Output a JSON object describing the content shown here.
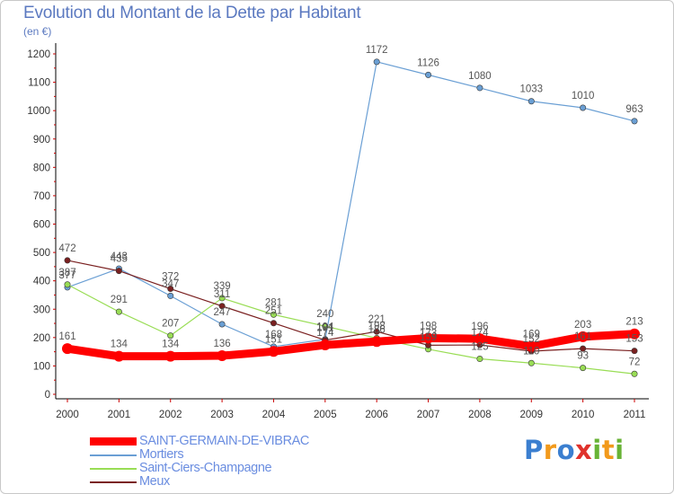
{
  "chart_data": {
    "type": "line",
    "title": "Evolution du Montant de la Dette par Habitant",
    "subtitle": "(en €)",
    "x": [
      "2000",
      "2001",
      "2002",
      "2003",
      "2004",
      "2005",
      "2006",
      "2007",
      "2008",
      "2009",
      "2010",
      "2011"
    ],
    "ylim": [
      0,
      1200
    ],
    "yticks": [
      0,
      100,
      200,
      300,
      400,
      500,
      600,
      700,
      800,
      900,
      1000,
      1100,
      1200
    ],
    "grid": false,
    "legend_position": "bottom-left",
    "series": [
      {
        "name": "SAINT-GERMAIN-DE-VIBRAC",
        "color": "#ff0000",
        "emphasis": true,
        "values": [
          161,
          134,
          134,
          136,
          151,
          174,
          186,
          198,
          196,
          169,
          203,
          213
        ],
        "labels": [
          "161",
          "134",
          "134",
          "136",
          "151",
          "174",
          "186",
          "198",
          "196",
          "169",
          "203",
          "213"
        ]
      },
      {
        "name": "Mortiers",
        "color": "#6a9fd4",
        "emphasis": false,
        "values": [
          377,
          443,
          347,
          247,
          168,
          194,
          1172,
          1126,
          1080,
          1033,
          1010,
          963
        ],
        "labels": [
          "377",
          "443",
          "347",
          "247",
          "168",
          "194",
          "1172",
          "1126",
          "1080",
          "1033",
          "1010",
          "963"
        ]
      },
      {
        "name": "Saint-Ciers-Champagne",
        "color": "#99dd55",
        "emphasis": false,
        "values": [
          387,
          291,
          207,
          339,
          281,
          240,
          198,
          159,
          125,
          110,
          93,
          72
        ],
        "labels": [
          "387",
          "291",
          "207",
          "339",
          "281",
          "240",
          "198",
          "159",
          "125",
          "110",
          "93",
          "72"
        ]
      },
      {
        "name": "Meux",
        "color": "#7a2020",
        "emphasis": false,
        "values": [
          472,
          435,
          372,
          311,
          251,
          191,
          221,
          173,
          174,
          152,
          161,
          153
        ],
        "labels": [
          "472",
          "435",
          "372",
          "311",
          "251",
          "191",
          "221",
          "173",
          "174",
          "152",
          "161",
          "153"
        ]
      }
    ]
  },
  "brand": {
    "logo_text": "Proxiti",
    "letters": [
      "P",
      "r",
      "o",
      "x",
      "i",
      "t",
      "i"
    ],
    "letter_colors": [
      "#3b7fd0",
      "#f29a1c",
      "#3b7fd0",
      "#e0322c",
      "#68b335",
      "#f29a1c",
      "#68b335"
    ]
  }
}
